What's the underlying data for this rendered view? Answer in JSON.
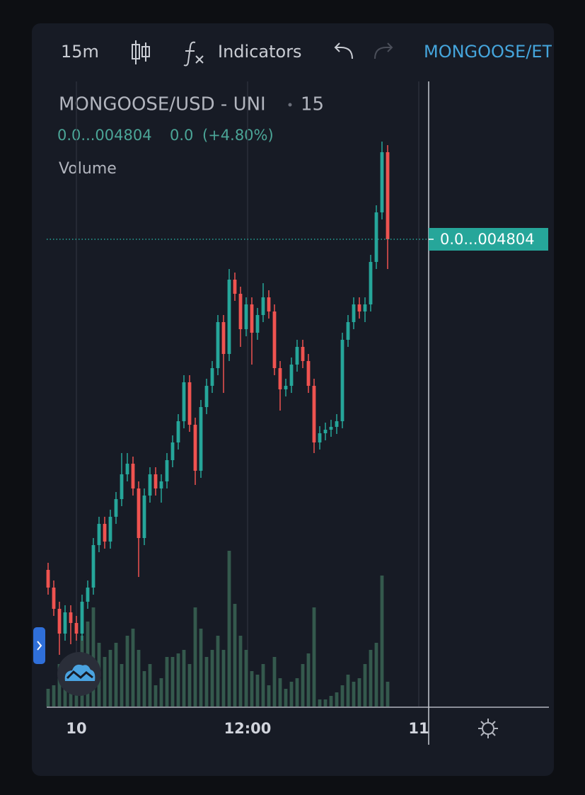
{
  "toolbar": {
    "interval": "15m",
    "indicators": "Indicators",
    "symbol_tab": "MONGOOSE/ET"
  },
  "chart_data": {
    "type": "candlestick",
    "symbol": "MONGOOSE/USD - UNI",
    "interval": "15",
    "legend_price": "0.0...004804",
    "legend_change": "0.0",
    "legend_change_pct": "(+4.80%)",
    "volume_label": "Volume",
    "price_label": "0.0...004804",
    "up_color": "#26a69a",
    "down_color": "#ef5350",
    "volume_color": "#34594d",
    "xlim": [
      -0.25,
      88.5
    ],
    "xticks": [
      {
        "value": 5,
        "label": "10"
      },
      {
        "value": 35.25,
        "label": "12:00"
      },
      {
        "value": 65.5,
        "label": "11"
      }
    ],
    "ylim": [
      2156,
      5676
    ],
    "volume_lim": [
      0,
      250
    ],
    "open": [
      2936,
      2836,
      2716,
      2576,
      2696,
      2636,
      2576,
      2756,
      2836,
      3076,
      3196,
      3096,
      3236,
      3336,
      3476,
      3536,
      3396,
      3116,
      3356,
      3476,
      3396,
      3436,
      3556,
      3656,
      3776,
      3996,
      3756,
      3496,
      3856,
      3976,
      4076,
      4336,
      4156,
      4576,
      4496,
      4296,
      4436,
      4276,
      4376,
      4476,
      4396,
      4076,
      3956,
      3976,
      4096,
      4196,
      4116,
      3976,
      3656,
      3708,
      3728,
      3744,
      3776,
      4236,
      4336,
      4436,
      4396,
      4436,
      4676,
      4956,
      5296
    ],
    "high": [
      2976,
      2876,
      2756,
      2736,
      2736,
      2676,
      2796,
      2876,
      3116,
      3236,
      3236,
      3276,
      3376,
      3596,
      3596,
      3576,
      3436,
      3396,
      3516,
      3516,
      3476,
      3596,
      3696,
      3816,
      4036,
      4036,
      3796,
      3896,
      4016,
      4116,
      4376,
      4376,
      4636,
      4616,
      4536,
      4476,
      4476,
      4416,
      4556,
      4516,
      4436,
      4116,
      4016,
      4136,
      4236,
      4236,
      4156,
      4016,
      3748,
      3768,
      3784,
      3816,
      4276,
      4376,
      4476,
      4476,
      4476,
      4716,
      4996,
      5356,
      5336
    ],
    "low": [
      2796,
      2676,
      2456,
      2536,
      2516,
      2536,
      2536,
      2716,
      2796,
      3036,
      3056,
      3056,
      3196,
      3296,
      3436,
      3356,
      2896,
      3076,
      3316,
      3356,
      3316,
      3396,
      3516,
      3616,
      3736,
      3716,
      3416,
      3456,
      3816,
      3936,
      4036,
      3936,
      4116,
      4456,
      4196,
      4256,
      4096,
      4236,
      4336,
      4356,
      4036,
      3836,
      3916,
      3936,
      4056,
      4076,
      3936,
      3596,
      3616,
      3668,
      3688,
      3704,
      3736,
      4196,
      4296,
      4356,
      4336,
      4396,
      4636,
      4916,
      4636
    ],
    "close": [
      2836,
      2716,
      2576,
      2696,
      2636,
      2576,
      2756,
      2836,
      3076,
      3196,
      3096,
      3236,
      3336,
      3476,
      3536,
      3396,
      3116,
      3356,
      3476,
      3396,
      3436,
      3556,
      3656,
      3776,
      3996,
      3756,
      3496,
      3856,
      3976,
      4076,
      4336,
      4156,
      4576,
      4496,
      4296,
      4436,
      4276,
      4376,
      4476,
      4396,
      4076,
      3956,
      3976,
      4096,
      4196,
      4116,
      3976,
      3656,
      3708,
      3728,
      3744,
      3776,
      4236,
      4336,
      4436,
      4396,
      4436,
      4676,
      4956,
      5296,
      4804
    ],
    "volume": [
      25,
      30,
      60,
      40,
      50,
      70,
      100,
      120,
      140,
      90,
      70,
      80,
      90,
      60,
      100,
      110,
      80,
      50,
      60,
      30,
      40,
      70,
      70,
      75,
      80,
      60,
      140,
      110,
      70,
      80,
      100,
      80,
      220,
      145,
      100,
      80,
      50,
      45,
      60,
      30,
      70,
      40,
      25,
      35,
      40,
      60,
      75,
      140,
      10,
      10,
      15,
      20,
      30,
      45,
      35,
      40,
      60,
      80,
      90,
      185,
      35
    ]
  }
}
